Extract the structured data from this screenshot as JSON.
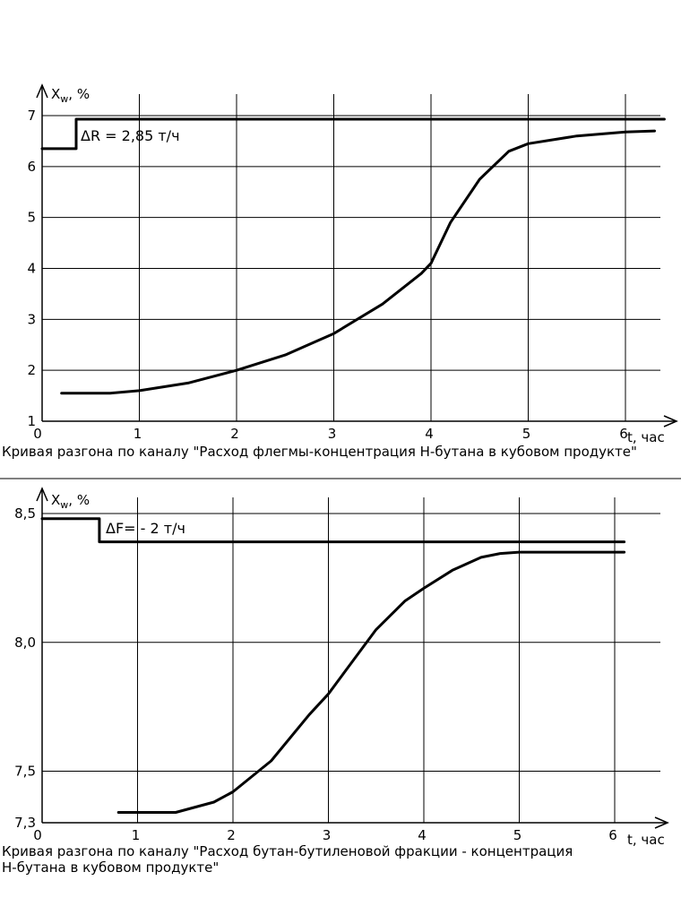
{
  "chart_data": [
    {
      "type": "line",
      "title": "",
      "ylabel_main": "X",
      "ylabel_sub": "w",
      "ylabel_unit": ", %",
      "xlabel": "t, час",
      "xlim": [
        0,
        6.5
      ],
      "ylim": [
        1,
        7
      ],
      "x_ticks": [
        "0",
        "1",
        "2",
        "3",
        "4",
        "5",
        "6"
      ],
      "y_ticks": [
        "1",
        "2",
        "3",
        "4",
        "5",
        "6",
        "7"
      ],
      "grid": true,
      "annotation": "ΔR = 2,85 т/ч",
      "caption": [
        "Кривая разгона по каналу \"Расход флегмы-концентрация Н-бутана в кубовом продукте\""
      ],
      "series": [
        {
          "role": "step-input",
          "x": [
            0,
            0.35,
            0.35,
            6.4
          ],
          "y": [
            6.35,
            6.35,
            6.93,
            6.93
          ]
        },
        {
          "role": "response",
          "x": [
            0.2,
            0.7,
            1.0,
            1.5,
            2.0,
            2.5,
            3.0,
            3.5,
            3.9,
            4.0,
            4.2,
            4.5,
            4.8,
            5.0,
            5.5,
            6.0,
            6.3
          ],
          "y": [
            1.55,
            1.55,
            1.6,
            1.75,
            2.0,
            2.3,
            2.72,
            3.3,
            3.9,
            4.1,
            4.9,
            5.75,
            6.3,
            6.45,
            6.6,
            6.68,
            6.7
          ]
        }
      ]
    },
    {
      "type": "line",
      "title": "",
      "ylabel_main": "X",
      "ylabel_sub": "w",
      "ylabel_unit": ", %",
      "xlabel": "t, час",
      "xlim": [
        0,
        6.2
      ],
      "ylim": [
        7.3,
        8.5
      ],
      "x_ticks": [
        "0",
        "1",
        "2",
        "3",
        "4",
        "5",
        "6"
      ],
      "y_ticks": [
        "7,3",
        "7,5",
        "8,0",
        "8,5"
      ],
      "y_tick_values": [
        7.3,
        7.5,
        8.0,
        8.5
      ],
      "grid": true,
      "annotation": "ΔF= - 2 т/ч",
      "caption": [
        "Кривая разгона по каналу \"Расход бутан-бутиленовой фракции - концентрация",
        "Н-бутана в кубовом продукте\""
      ],
      "series": [
        {
          "role": "step-input",
          "x": [
            0,
            0.6,
            0.6,
            6.1
          ],
          "y": [
            8.48,
            8.48,
            8.39,
            8.39
          ]
        },
        {
          "role": "response",
          "x": [
            0.8,
            1.0,
            1.4,
            1.8,
            2.0,
            2.4,
            2.8,
            3.0,
            3.2,
            3.5,
            3.8,
            4.0,
            4.3,
            4.6,
            4.8,
            5.0,
            5.5,
            6.1
          ],
          "y": [
            7.34,
            7.34,
            7.34,
            7.38,
            7.42,
            7.54,
            7.72,
            7.8,
            7.9,
            8.05,
            8.16,
            8.21,
            8.28,
            8.33,
            8.345,
            8.35,
            8.35,
            8.35
          ]
        }
      ]
    }
  ]
}
